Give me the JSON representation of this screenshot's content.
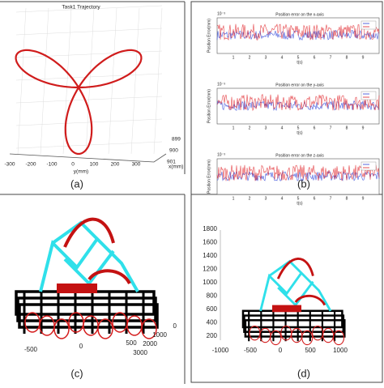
{
  "panels": [
    {
      "caption": "(a)",
      "title": "Task1 Trajectory",
      "y_ticks": [
        "-300",
        "-200",
        "-100",
        "0",
        "100",
        "200",
        "300"
      ],
      "y_label": "y(mm)",
      "x_ticks": [
        "899",
        "900",
        "901"
      ],
      "x_label": "x(mm)"
    },
    {
      "caption": "(b)",
      "scale": "10⁻³",
      "y_label": "Position Error(mm)",
      "x_label": "t(s)",
      "x_ticks": [
        "1",
        "2",
        "3",
        "4",
        "5",
        "6",
        "7",
        "8",
        "9"
      ],
      "subplots": [
        {
          "title": "Position error on the x-axis"
        },
        {
          "title": "Position error on the y-axis"
        },
        {
          "title": "Position error on the z-axis"
        }
      ]
    },
    {
      "caption": "(c)",
      "x_ticks": [
        "-500",
        "0",
        "500"
      ],
      "depth_ticks": [
        "0",
        "1000",
        "2000",
        "3000"
      ]
    },
    {
      "caption": "(d)",
      "z_ticks": [
        "200",
        "400",
        "600",
        "800",
        "1000",
        "1200",
        "1400",
        "1600",
        "1800"
      ],
      "x_ticks": [
        "-1000",
        "-500",
        "0",
        "500",
        "1000"
      ]
    }
  ]
}
